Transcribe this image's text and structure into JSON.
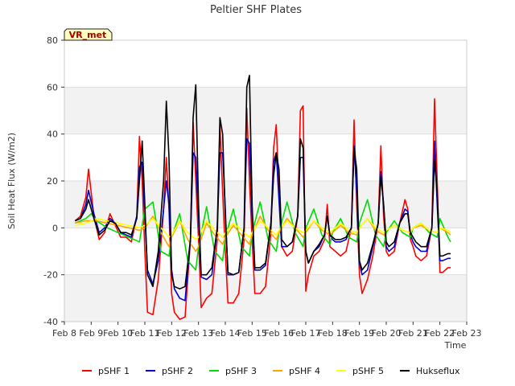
{
  "chart_data": {
    "type": "line",
    "title": "Peltier SHF Plates",
    "xlabel": "Time",
    "ylabel": "Soil Heat Flux (W/m2)",
    "badge": "VR_met",
    "ylim": [
      -40,
      80
    ],
    "yticks": [
      -40,
      -20,
      0,
      20,
      40,
      60,
      80
    ],
    "xlim": [
      8,
      23
    ],
    "xticks": [
      {
        "value": 8,
        "label": "Feb 8"
      },
      {
        "value": 9,
        "label": "Feb 9"
      },
      {
        "value": 10,
        "label": "Feb 10"
      },
      {
        "value": 11,
        "label": "Feb 11"
      },
      {
        "value": 12,
        "label": "Feb 12"
      },
      {
        "value": 13,
        "label": "Feb 13"
      },
      {
        "value": 14,
        "label": "Feb 14"
      },
      {
        "value": 15,
        "label": "Feb 15"
      },
      {
        "value": 16,
        "label": "Feb 16"
      },
      {
        "value": 17,
        "label": "Feb 17"
      },
      {
        "value": 18,
        "label": "Feb 18"
      },
      {
        "value": 19,
        "label": "Feb 19"
      },
      {
        "value": 20,
        "label": "Feb 20"
      },
      {
        "value": 21,
        "label": "Feb 21"
      },
      {
        "value": 22,
        "label": "Feb 22"
      },
      {
        "value": 23,
        "label": "Feb 23"
      }
    ],
    "grid": true,
    "legend_position": "bottom",
    "series": [
      {
        "name": "pSHF 1",
        "color": "#ff0000",
        "x": [
          8.4,
          8.6,
          8.8,
          8.9,
          9.1,
          9.3,
          9.5,
          9.7,
          9.9,
          10.1,
          10.3,
          10.5,
          10.7,
          10.8,
          10.9,
          11.0,
          11.1,
          11.3,
          11.5,
          11.7,
          11.8,
          11.9,
          12.0,
          12.1,
          12.3,
          12.5,
          12.7,
          12.8,
          12.9,
          13.0,
          13.1,
          13.3,
          13.5,
          13.7,
          13.8,
          13.9,
          14.0,
          14.1,
          14.3,
          14.5,
          14.7,
          14.8,
          14.9,
          15.0,
          15.1,
          15.3,
          15.5,
          15.7,
          15.8,
          15.9,
          16.0,
          16.1,
          16.3,
          16.5,
          16.7,
          16.8,
          16.9,
          17.0,
          17.1,
          17.3,
          17.5,
          17.7,
          17.8,
          17.9,
          18.0,
          18.1,
          18.3,
          18.5,
          18.7,
          18.8,
          18.9,
          19.0,
          19.1,
          19.3,
          19.5,
          19.7,
          19.8,
          19.9,
          20.0,
          20.1,
          20.3,
          20.5,
          20.7,
          20.8,
          20.9,
          21.0,
          21.1,
          21.3,
          21.5,
          21.7,
          21.8,
          21.9,
          22.0,
          22.1,
          22.3,
          22.4
        ],
        "y": [
          3,
          5,
          13,
          25,
          5,
          -5,
          -2,
          6,
          1,
          -4,
          -4,
          -6,
          5,
          39,
          20,
          -10,
          -36,
          -37,
          -22,
          8,
          30,
          8,
          -28,
          -36,
          -39,
          -38,
          -5,
          45,
          20,
          -5,
          -34,
          -30,
          -28,
          -5,
          44,
          15,
          -10,
          -32,
          -32,
          -28,
          -5,
          51,
          20,
          -5,
          -28,
          -28,
          -25,
          -2,
          34,
          44,
          15,
          -8,
          -12,
          -10,
          5,
          50,
          52,
          -27,
          -20,
          -12,
          -10,
          -5,
          10,
          -8,
          -9,
          -10,
          -12,
          -10,
          0,
          46,
          10,
          -20,
          -28,
          -22,
          -12,
          2,
          35,
          5,
          -10,
          -12,
          -10,
          2,
          12,
          8,
          -5,
          -8,
          -12,
          -14,
          -12,
          0,
          55,
          20,
          -19,
          -19,
          -17,
          -17
        ]
      },
      {
        "name": "pSHF 2",
        "color": "#0000cc",
        "x": [
          8.4,
          8.6,
          8.8,
          8.9,
          9.1,
          9.3,
          9.5,
          9.7,
          9.9,
          10.1,
          10.3,
          10.5,
          10.7,
          10.8,
          10.9,
          11.0,
          11.1,
          11.3,
          11.5,
          11.7,
          11.8,
          11.9,
          12.0,
          12.1,
          12.3,
          12.5,
          12.7,
          12.8,
          12.9,
          13.0,
          13.1,
          13.3,
          13.5,
          13.7,
          13.8,
          13.9,
          14.0,
          14.1,
          14.3,
          14.5,
          14.7,
          14.8,
          14.9,
          15.0,
          15.1,
          15.3,
          15.5,
          15.7,
          15.8,
          15.9,
          16.0,
          16.1,
          16.3,
          16.5,
          16.7,
          16.8,
          16.9,
          17.0,
          17.1,
          17.3,
          17.5,
          17.7,
          17.8,
          17.9,
          18.0,
          18.1,
          18.3,
          18.5,
          18.7,
          18.8,
          18.9,
          19.0,
          19.1,
          19.3,
          19.5,
          19.7,
          19.8,
          19.9,
          20.0,
          20.1,
          20.3,
          20.5,
          20.7,
          20.8,
          20.9,
          21.0,
          21.1,
          21.3,
          21.5,
          21.7,
          21.8,
          21.9,
          22.0,
          22.1,
          22.3,
          22.4
        ],
        "y": [
          3,
          4,
          10,
          16,
          6,
          -2,
          0,
          4,
          2,
          -2,
          -3,
          -4,
          5,
          26,
          28,
          5,
          -18,
          -24,
          -14,
          8,
          20,
          10,
          -18,
          -26,
          -30,
          -31,
          -5,
          32,
          30,
          5,
          -21,
          -22,
          -20,
          0,
          32,
          32,
          8,
          -20,
          -20,
          -19,
          0,
          38,
          36,
          5,
          -18,
          -18,
          -16,
          2,
          28,
          32,
          12,
          -8,
          -8,
          -6,
          5,
          30,
          30,
          -10,
          -15,
          -10,
          -8,
          -3,
          5,
          -3,
          -5,
          -6,
          -6,
          -5,
          0,
          35,
          15,
          -15,
          -20,
          -18,
          -8,
          2,
          24,
          10,
          -8,
          -10,
          -8,
          2,
          8,
          7,
          -3,
          -6,
          -8,
          -10,
          -10,
          0,
          37,
          10,
          -14,
          -14,
          -13,
          -13
        ]
      },
      {
        "name": "pSHF 3",
        "color": "#00dd00",
        "x": [
          8.4,
          8.8,
          9.0,
          9.2,
          9.6,
          10.0,
          10.4,
          10.8,
          11.0,
          11.3,
          11.6,
          11.9,
          12.0,
          12.3,
          12.6,
          12.9,
          13.0,
          13.3,
          13.6,
          13.9,
          14.0,
          14.3,
          14.6,
          14.9,
          15.0,
          15.3,
          15.6,
          15.9,
          16.0,
          16.3,
          16.6,
          16.9,
          17.0,
          17.3,
          17.6,
          17.9,
          18.0,
          18.3,
          18.6,
          18.9,
          19.0,
          19.3,
          19.6,
          19.9,
          20.0,
          20.3,
          20.6,
          20.9,
          21.0,
          21.3,
          21.6,
          21.9,
          22.0,
          22.3,
          22.4
        ],
        "y": [
          2,
          4,
          6,
          3,
          0,
          -2,
          -4,
          -6,
          8,
          11,
          -10,
          -12,
          -4,
          6,
          -14,
          -18,
          -8,
          9,
          -10,
          -14,
          -4,
          8,
          -8,
          -12,
          -2,
          11,
          -5,
          -10,
          -2,
          11,
          -2,
          -8,
          0,
          8,
          -3,
          -7,
          -2,
          4,
          -4,
          -6,
          2,
          12,
          -3,
          -8,
          -2,
          3,
          -2,
          -4,
          0,
          2,
          -2,
          -4,
          4,
          -4,
          -6
        ]
      },
      {
        "name": "pSHF 4",
        "color": "#ffa500",
        "x": [
          8.4,
          8.8,
          9.2,
          9.6,
          10.0,
          10.4,
          10.8,
          11.0,
          11.3,
          11.6,
          11.9,
          12.0,
          12.3,
          12.6,
          12.9,
          13.0,
          13.3,
          13.6,
          13.9,
          14.0,
          14.3,
          14.6,
          14.9,
          15.0,
          15.3,
          15.6,
          15.9,
          16.0,
          16.3,
          16.6,
          16.9,
          17.0,
          17.3,
          17.6,
          17.9,
          18.0,
          18.3,
          18.6,
          18.9,
          19.0,
          19.3,
          19.6,
          19.9,
          20.0,
          20.3,
          20.6,
          20.9,
          21.0,
          21.3,
          21.6,
          21.9,
          22.0,
          22.3,
          22.4
        ],
        "y": [
          2,
          3,
          3,
          2,
          1,
          0,
          -1,
          0,
          5,
          -2,
          -8,
          -4,
          3,
          -5,
          -10,
          -8,
          2,
          -3,
          -7,
          -4,
          1,
          -3,
          -7,
          -3,
          5,
          -1,
          -5,
          -2,
          4,
          0,
          -4,
          -2,
          3,
          -1,
          -3,
          -2,
          1,
          -2,
          -3,
          0,
          4,
          -1,
          -3,
          -1,
          1,
          -1,
          -2,
          0,
          1,
          -1,
          -2,
          0,
          -2,
          -3
        ]
      },
      {
        "name": "pSHF 5",
        "color": "#ffff00",
        "x": [
          8.4,
          8.8,
          9.2,
          9.6,
          10.0,
          10.4,
          10.8,
          11.0,
          11.3,
          11.6,
          11.9,
          12.0,
          12.3,
          12.6,
          12.9,
          13.0,
          13.3,
          13.6,
          13.9,
          14.0,
          14.3,
          14.6,
          14.9,
          15.0,
          15.3,
          15.6,
          15.9,
          16.0,
          16.3,
          16.6,
          16.9,
          17.0,
          17.3,
          17.6,
          17.9,
          18.0,
          18.3,
          18.6,
          18.9,
          19.0,
          19.3,
          19.6,
          19.9,
          20.0,
          20.3,
          20.6,
          20.9,
          21.0,
          21.3,
          21.6,
          21.9,
          22.0,
          22.3,
          22.4
        ],
        "y": [
          1,
          2,
          4,
          3,
          2,
          1,
          0,
          1,
          4,
          0,
          -4,
          -3,
          3,
          -2,
          -5,
          -4,
          3,
          -1,
          -4,
          -2,
          2,
          -1,
          -4,
          -2,
          3,
          0,
          -3,
          -1,
          3,
          0,
          -2,
          -1,
          3,
          0,
          -2,
          -1,
          2,
          -1,
          -2,
          0,
          4,
          0,
          -2,
          -1,
          1,
          -1,
          -2,
          0,
          2,
          -1,
          -2,
          0,
          -1,
          -2
        ]
      },
      {
        "name": "Hukseflux",
        "color": "#000000",
        "x": [
          8.4,
          8.6,
          8.8,
          8.9,
          9.1,
          9.3,
          9.5,
          9.7,
          9.9,
          10.1,
          10.3,
          10.5,
          10.7,
          10.8,
          10.9,
          11.0,
          11.1,
          11.3,
          11.5,
          11.7,
          11.8,
          11.9,
          12.0,
          12.1,
          12.3,
          12.5,
          12.7,
          12.8,
          12.9,
          13.0,
          13.1,
          13.3,
          13.5,
          13.7,
          13.8,
          13.9,
          14.0,
          14.1,
          14.3,
          14.5,
          14.7,
          14.8,
          14.9,
          15.0,
          15.1,
          15.3,
          15.5,
          15.7,
          15.8,
          15.9,
          16.0,
          16.1,
          16.3,
          16.5,
          16.7,
          16.8,
          16.9,
          17.0,
          17.1,
          17.3,
          17.5,
          17.7,
          17.8,
          17.9,
          18.0,
          18.1,
          18.3,
          18.5,
          18.7,
          18.8,
          18.9,
          19.0,
          19.1,
          19.3,
          19.5,
          19.7,
          19.8,
          19.9,
          20.0,
          20.1,
          20.3,
          20.5,
          20.7,
          20.8,
          20.9,
          21.0,
          21.1,
          21.3,
          21.5,
          21.7,
          21.8,
          21.9,
          22.0,
          22.1,
          22.3,
          22.4
        ],
        "y": [
          3,
          4,
          8,
          12,
          4,
          -3,
          -1,
          3,
          2,
          -2,
          -2,
          -3,
          4,
          20,
          37,
          10,
          -20,
          -25,
          -10,
          20,
          54,
          30,
          -20,
          -25,
          -26,
          -25,
          -5,
          47,
          61,
          10,
          -20,
          -20,
          -17,
          0,
          47,
          40,
          5,
          -19,
          -20,
          -19,
          0,
          60,
          65,
          10,
          -17,
          -17,
          -15,
          2,
          22,
          32,
          25,
          -5,
          -8,
          -6,
          5,
          38,
          34,
          -10,
          -15,
          -10,
          -7,
          -3,
          5,
          -3,
          -4,
          -5,
          -5,
          -4,
          0,
          34,
          25,
          -14,
          -18,
          -15,
          -7,
          2,
          22,
          10,
          -6,
          -8,
          -6,
          2,
          6,
          6,
          -2,
          -4,
          -6,
          -8,
          -8,
          0,
          29,
          15,
          -12,
          -12,
          -11,
          -11
        ]
      }
    ]
  }
}
